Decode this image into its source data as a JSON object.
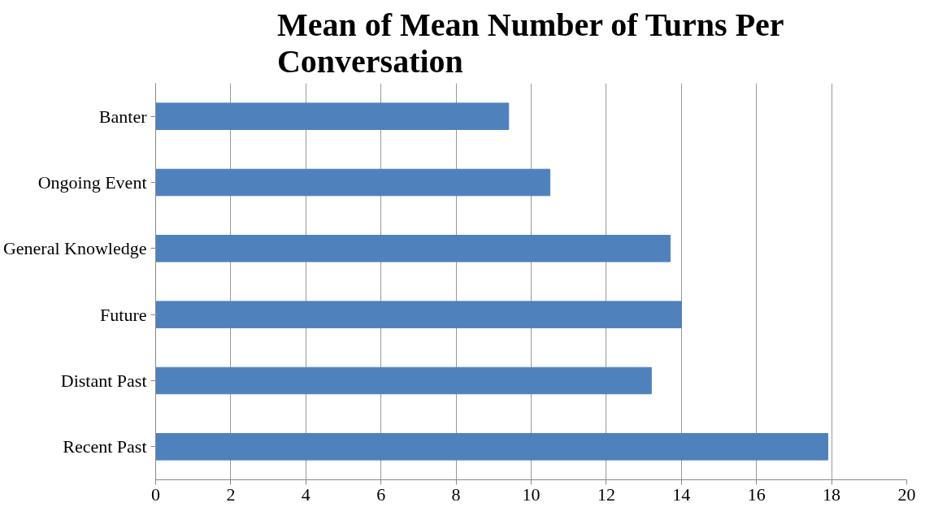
{
  "chart_data": {
    "type": "bar",
    "orientation": "horizontal",
    "title": "Mean of Mean Number of Turns Per Conversation",
    "categories": [
      "Banter",
      "Ongoing Event",
      "General Knowledge",
      "Future",
      "Distant Past",
      "Recent Past"
    ],
    "values": [
      9.4,
      10.5,
      13.7,
      14.0,
      13.2,
      17.9
    ],
    "color": "#4f81bd",
    "xlim": [
      0,
      20
    ],
    "xticks": [
      0,
      2,
      4,
      6,
      8,
      10,
      12,
      14,
      16,
      18,
      20
    ],
    "grid": "x"
  }
}
